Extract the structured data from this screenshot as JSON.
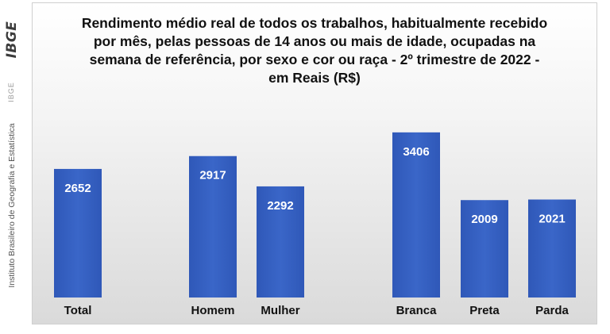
{
  "sidebar": {
    "logo": "IBGE",
    "small_label": "IBGE",
    "institute": "Instituto Brasileiro de Geografia e Estatística"
  },
  "chart_data": {
    "type": "bar",
    "title": "Rendimento médio real de todos os trabalhos, habitualmente recebido por mês, pelas pessoas de 14 anos ou mais de idade, ocupadas na semana de referência, por sexo e cor ou raça - 2º trimestre de 2022 - em Reais (R$)",
    "categories": [
      "Total",
      "Homem",
      "Mulher",
      "Branca",
      "Preta",
      "Parda"
    ],
    "groups": [
      [
        "Total"
      ],
      [
        "Homem",
        "Mulher"
      ],
      [
        "Branca",
        "Preta",
        "Parda"
      ]
    ],
    "values": [
      2652,
      2917,
      2292,
      3406,
      2009,
      2021
    ],
    "data_labels": [
      "2652",
      "2917",
      "2292",
      "3406",
      "2009",
      "2021"
    ],
    "ylim": [
      0,
      3600
    ],
    "grid": false,
    "legend": "none",
    "bar_color": "#3a66c8",
    "label_color": "#ffffff"
  }
}
